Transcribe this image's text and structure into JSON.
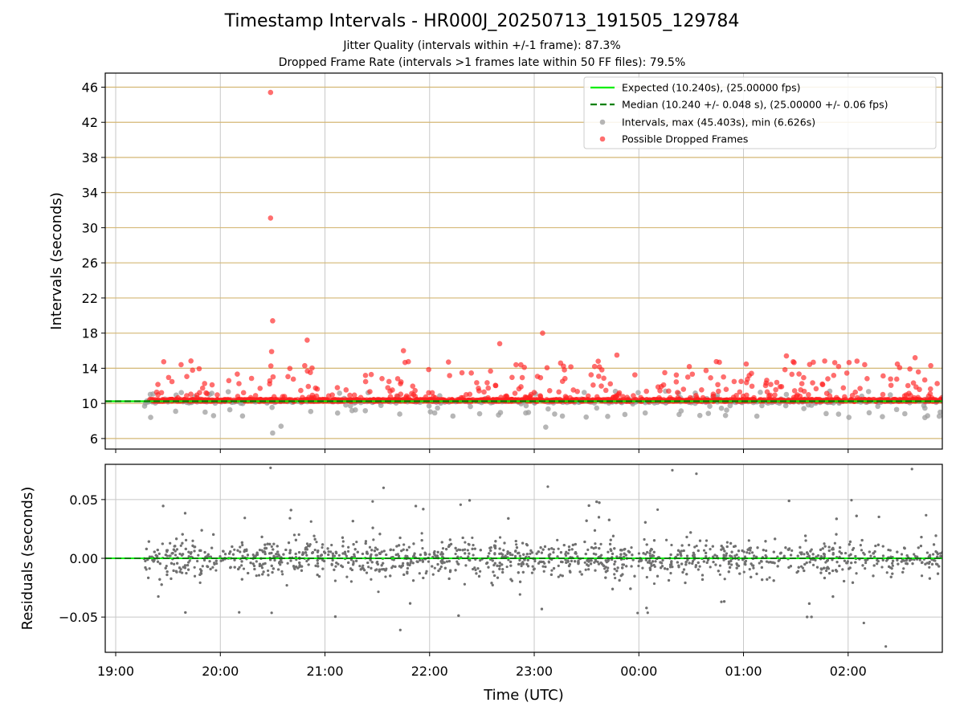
{
  "figure": {
    "title": "Timestamp Intervals - HR000J_20250713_191505_129784",
    "subtitle_1": "Jitter Quality (intervals within +/-1 frame): 87.3%",
    "subtitle_2": "Dropped Frame Rate (intervals >1 frames late within 50 FF files): 79.5%"
  },
  "colors": {
    "expected": "#00ee00",
    "median": "#008000",
    "intervals": "#9e9e9e",
    "dropped": "#ff2020",
    "residuals": "#707070",
    "h_grid_top": "#d4b774",
    "grid": "#c8c8c8"
  },
  "chart_data": [
    {
      "type": "scatter",
      "name": "intervals-panel",
      "xlabel": "",
      "ylabel": "Intervals (seconds)",
      "x_ticks": [
        "19:00",
        "20:00",
        "21:00",
        "22:00",
        "23:00",
        "00:00",
        "01:00",
        "02:00"
      ],
      "xlim": [
        18.9,
        26.9
      ],
      "ylim": [
        4.8,
        47.6
      ],
      "y_ticks": [
        6,
        10,
        14,
        18,
        22,
        26,
        30,
        34,
        38,
        42,
        46
      ],
      "grid": "on",
      "legend_position": "top-right",
      "legend": [
        "Expected (10.240s), (25.00000 fps)",
        "Median (10.240 +/- 0.048 s), (25.00000 +/- 0.06 fps)",
        "Intervals, max (45.403s), min (6.626s)",
        "Possible Dropped Frames"
      ],
      "lines": [
        {
          "name": "Expected (10.240s), (25.00000 fps)",
          "y": 10.24,
          "style": "solid"
        },
        {
          "name": "Median (10.240 +/- 0.048 s), (25.00000 +/- 0.06 fps)",
          "y": 10.24,
          "style": "dashed"
        }
      ],
      "intervals_max": 45.403,
      "intervals_min": 6.626,
      "notable_points": [
        {
          "x": 20.48,
          "y": 45.4
        },
        {
          "x": 20.48,
          "y": 31.1
        },
        {
          "x": 20.5,
          "y": 19.4
        },
        {
          "x": 20.49,
          "y": 15.9
        },
        {
          "x": 20.5,
          "y": 6.63
        },
        {
          "x": 20.83,
          "y": 17.2
        },
        {
          "x": 23.08,
          "y": 18.0
        },
        {
          "x": 22.67,
          "y": 16.8
        },
        {
          "x": 21.75,
          "y": 16.0
        },
        {
          "x": 23.79,
          "y": 15.5
        },
        {
          "x": 25.41,
          "y": 15.4
        },
        {
          "x": 26.64,
          "y": 15.2
        },
        {
          "x": 23.11,
          "y": 7.3
        },
        {
          "x": 20.58,
          "y": 7.4
        }
      ],
      "series": [
        {
          "name": "Intervals, max (45.403s), min (6.626s)",
          "typical_range": [
            8.0,
            11.5
          ]
        },
        {
          "name": "Possible Dropped Frames",
          "typical_range": [
            10.3,
            15.0
          ]
        }
      ]
    },
    {
      "type": "scatter",
      "name": "residuals-panel",
      "xlabel": "Time (UTC)",
      "ylabel": "Residuals (seconds)",
      "x_ticks": [
        "19:00",
        "20:00",
        "21:00",
        "22:00",
        "23:00",
        "00:00",
        "01:00",
        "02:00"
      ],
      "xlim": [
        18.9,
        26.9
      ],
      "ylim": [
        -0.08,
        0.08
      ],
      "y_ticks": [
        "0.05",
        "0.00",
        "−0.05"
      ],
      "y_tick_values": [
        0.05,
        0.0,
        -0.05
      ],
      "grid": "on",
      "reference_y": 0.0,
      "typical_spread": 0.025,
      "notable_points": [
        {
          "x": 20.48,
          "y": 0.077
        },
        {
          "x": 24.32,
          "y": 0.075
        },
        {
          "x": 24.55,
          "y": 0.072
        },
        {
          "x": 26.61,
          "y": 0.076
        },
        {
          "x": 23.13,
          "y": 0.061
        },
        {
          "x": 21.56,
          "y": 0.06
        },
        {
          "x": 21.72,
          "y": -0.061
        },
        {
          "x": 26.36,
          "y": -0.075
        },
        {
          "x": 26.15,
          "y": -0.055
        },
        {
          "x": 20.18,
          "y": -0.046
        }
      ]
    }
  ]
}
